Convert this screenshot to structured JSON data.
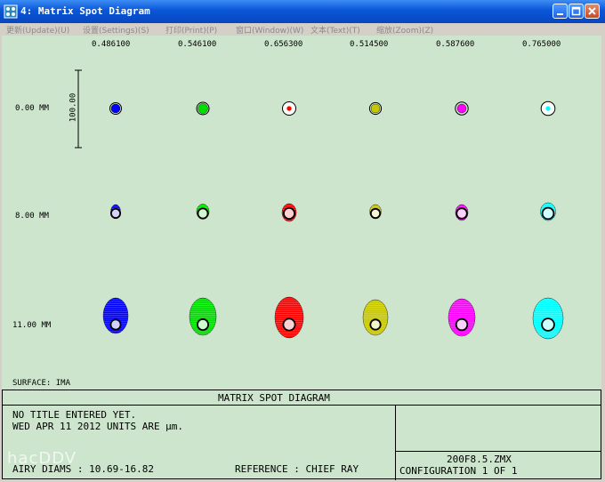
{
  "window": {
    "title": "4: Matrix Spot Diagram",
    "controls": {
      "minimize": "minimize-icon",
      "maximize": "maximize-icon",
      "close": "close-icon"
    }
  },
  "menu": [
    {
      "label": "更新(Update)(U)"
    },
    {
      "label": "设置(Settings)(S)"
    },
    {
      "label": "打印(Print)(P)"
    },
    {
      "label": "窗口(Window)(W)"
    },
    {
      "label": "文本(Text)(T)"
    },
    {
      "label": "缩放(Zoom)(Z)"
    }
  ],
  "plot": {
    "wavelengths": [
      "0.486100",
      "0.546100",
      "0.656300",
      "0.514500",
      "0.587600",
      "0.765000"
    ],
    "fields": [
      "0.00 MM",
      "8.00 MM",
      "11.00 MM"
    ],
    "scale_label": "100.00",
    "surface": "SURFACE: IMA",
    "colors": [
      "#0000ff",
      "#00dd00",
      "#ff0000",
      "#c8c800",
      "#ff00ff",
      "#00ffff"
    ],
    "footer": {
      "heading": "MATRIX SPOT DIAGRAM",
      "line1": "NO TITLE ENTERED YET.",
      "line2": "WED APR 11 2012  UNITS ARE μm.",
      "airy": "AIRY DIAMS : 10.69-16.82",
      "reference": "REFERENCE  : CHIEF RAY",
      "file": "200F8.5.ZMX",
      "config": "CONFIGURATION  1  OF  1"
    }
  },
  "watermark": "hacDDV"
}
